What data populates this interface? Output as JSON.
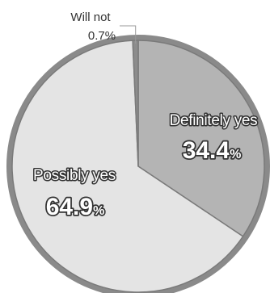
{
  "chart_data": {
    "type": "pie",
    "slices": [
      {
        "label": "Definitely yes",
        "value": 34.4,
        "display": "34.4",
        "unit": "%",
        "color": "#b4b4b4"
      },
      {
        "label": "Possibly yes",
        "value": 64.9,
        "display": "64.9",
        "unit": "%",
        "color": "#e4e4e4"
      },
      {
        "label": "Will not",
        "value": 0.7,
        "display": "0.7%",
        "unit": "",
        "color": "#8c8c8c"
      }
    ],
    "start_angle_deg": 0,
    "direction": "clockwise",
    "rim_color": "#8a8a8a"
  }
}
